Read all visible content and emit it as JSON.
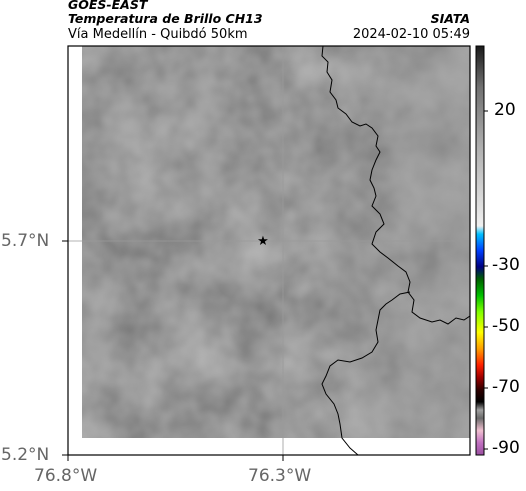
{
  "header": {
    "satellite": "GOES-EAST",
    "product": "Temperatura de Brillo CH13",
    "location": "Vía Medellín - Quibdó 50km",
    "organization": "SIATA",
    "datetime": "2024-02-10 05:49"
  },
  "axes": {
    "y_ticks": [
      "5.7°N",
      "5.2°N"
    ],
    "x_ticks": [
      "76.8°W",
      "76.3°W"
    ]
  },
  "colorbar": {
    "ticks": [
      "20",
      "-30",
      "-50",
      "-70",
      "-90"
    ]
  },
  "marker": {
    "icon": "star-icon",
    "color": "#000000"
  },
  "colors": {
    "background_field": "#7a7a7a",
    "border_line": "#000000"
  }
}
